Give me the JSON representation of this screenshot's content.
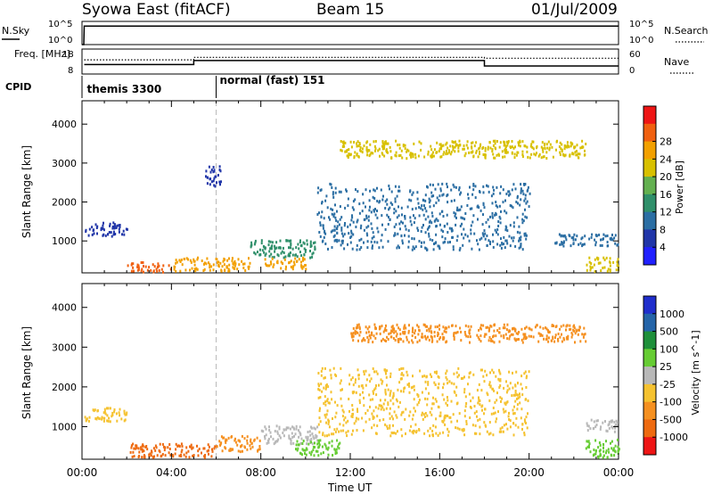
{
  "header": {
    "title": "Syowa East (fitACF)",
    "beam": "Beam 15",
    "date": "01/Jul/2009"
  },
  "colors": {
    "axis": "#000000",
    "cpid_divider": "#aaaaaa",
    "power_scale": [
      "#2020ff",
      "#2035a8",
      "#2b6ea3",
      "#2f8f6a",
      "#63b050",
      "#d8c000",
      "#f2a000",
      "#f06010",
      "#ee1515"
    ],
    "velocity_scale": [
      "#1f2ecc",
      "#2464a8",
      "#1e8f3a",
      "#66cc33",
      "#b8b8b8",
      "#f5c230",
      "#f59020",
      "#ee6a10",
      "#ee1515"
    ]
  },
  "chart_data": [
    {
      "type": "line",
      "panel": "nsky-nsearch",
      "left_label": "N.Sky",
      "right_label": "N.Search",
      "left_ticks": [
        "10^5",
        "10^0"
      ],
      "right_ticks": [
        "10^5",
        "10^0"
      ],
      "series": [
        {
          "name": "N.Sky",
          "style": "solid",
          "x_hours": [
            0,
            0.08,
            0.1,
            24
          ],
          "values": [
            1,
            1,
            10000,
            10000
          ]
        }
      ]
    },
    {
      "type": "line",
      "panel": "freq-nave",
      "left_label": "Freq. [MHz]",
      "right_label": "Nave",
      "left_ticks": [
        "18",
        "8"
      ],
      "right_ticks": [
        "60",
        "0"
      ],
      "left_ylim": [
        8,
        18
      ],
      "right_ylim": [
        0,
        60
      ],
      "series": [
        {
          "name": "Freq.",
          "axis": "left",
          "style": "solid",
          "x_hours": [
            0.1,
            5.0,
            5.0,
            18.0,
            18.0,
            24.0
          ],
          "values": [
            11.8,
            11.8,
            13.4,
            13.4,
            11.2,
            11.2
          ]
        },
        {
          "name": "Nave",
          "axis": "right",
          "style": "dotted",
          "x_hours": [
            0.1,
            5.0,
            5.0,
            18.0,
            18.0,
            24.0
          ],
          "values": [
            34,
            34,
            40,
            40,
            38,
            38
          ]
        }
      ]
    },
    {
      "type": "table",
      "panel": "cpid",
      "label": "CPID",
      "entries": [
        {
          "text": "themis 3300",
          "start_hour": 0.1
        },
        {
          "text": "normal (fast) 151",
          "start_hour": 6.0
        }
      ]
    },
    {
      "type": "heatmap",
      "panel": "power",
      "ylabel": "Slant Range [km]",
      "y_ticks": [
        1000,
        2000,
        3000,
        4000
      ],
      "ylim": [
        180,
        4600
      ],
      "xlim": [
        0,
        24
      ],
      "colorbar_label": "Power [dB]",
      "colorbar_ticks": [
        "4",
        "8",
        "12",
        "16",
        "20",
        "24",
        "28"
      ],
      "colorbar_range": [
        0,
        30
      ],
      "regions": [
        {
          "t0": 0.1,
          "t1": 2.0,
          "r0": 1150,
          "r1": 1500,
          "value": 6
        },
        {
          "t0": 2.0,
          "t1": 4.0,
          "r0": 230,
          "r1": 480,
          "value": 26
        },
        {
          "t0": 4.0,
          "t1": 7.5,
          "r0": 250,
          "r1": 600,
          "value": 22
        },
        {
          "t0": 7.5,
          "t1": 10.5,
          "r0": 600,
          "r1": 1050,
          "value": 12
        },
        {
          "t0": 8.0,
          "t1": 10.0,
          "r0": 300,
          "r1": 600,
          "value": 20
        },
        {
          "t0": 5.5,
          "t1": 6.2,
          "r0": 2400,
          "r1": 2950,
          "value": 5
        },
        {
          "t0": 11.5,
          "t1": 22.5,
          "r0": 3150,
          "r1": 3600,
          "value": 18
        },
        {
          "t0": 21.0,
          "t1": 24.0,
          "r0": 900,
          "r1": 1200,
          "value": 7
        },
        {
          "t0": 22.5,
          "t1": 24.0,
          "r0": 230,
          "r1": 600,
          "value": 17
        },
        {
          "t0": 10.5,
          "t1": 20.0,
          "r0": 800,
          "r1": 2500,
          "value": 9
        }
      ]
    },
    {
      "type": "heatmap",
      "panel": "velocity",
      "ylabel": "Slant Range [km]",
      "y_ticks": [
        1000,
        2000,
        3000,
        4000
      ],
      "ylim": [
        180,
        4600
      ],
      "xlim": [
        0,
        24
      ],
      "colorbar_label": "Velocity [m s^-1]",
      "colorbar_ticks": [
        "1000",
        "500",
        "100",
        "25",
        "-25",
        "-100",
        "-500",
        "-1000"
      ],
      "regions": [
        {
          "t0": 0.1,
          "t1": 2.0,
          "r0": 1150,
          "r1": 1500,
          "value": "-25"
        },
        {
          "t0": 2.0,
          "t1": 6.0,
          "r0": 250,
          "r1": 600,
          "value": "-500"
        },
        {
          "t0": 6.0,
          "t1": 8.0,
          "r0": 400,
          "r1": 800,
          "value": "-100"
        },
        {
          "t0": 8.0,
          "t1": 10.5,
          "r0": 600,
          "r1": 1050,
          "value": "25"
        },
        {
          "t0": 9.5,
          "t1": 11.5,
          "r0": 300,
          "r1": 700,
          "value": "100"
        },
        {
          "t0": 12.0,
          "t1": 22.5,
          "r0": 3150,
          "r1": 3600,
          "value": "-100"
        },
        {
          "t0": 22.5,
          "t1": 24.0,
          "r0": 230,
          "r1": 700,
          "value": "100"
        },
        {
          "t0": 22.5,
          "t1": 24.0,
          "r0": 900,
          "r1": 1200,
          "value": "25"
        },
        {
          "t0": 10.5,
          "t1": 20.0,
          "r0": 800,
          "r1": 2500,
          "value": "-25"
        }
      ]
    }
  ],
  "x_axis": {
    "label": "Time UT",
    "ticks": [
      "00:00",
      "04:00",
      "08:00",
      "12:00",
      "16:00",
      "20:00",
      "00:00"
    ],
    "tick_hours": [
      0,
      4,
      8,
      12,
      16,
      20,
      24
    ]
  }
}
